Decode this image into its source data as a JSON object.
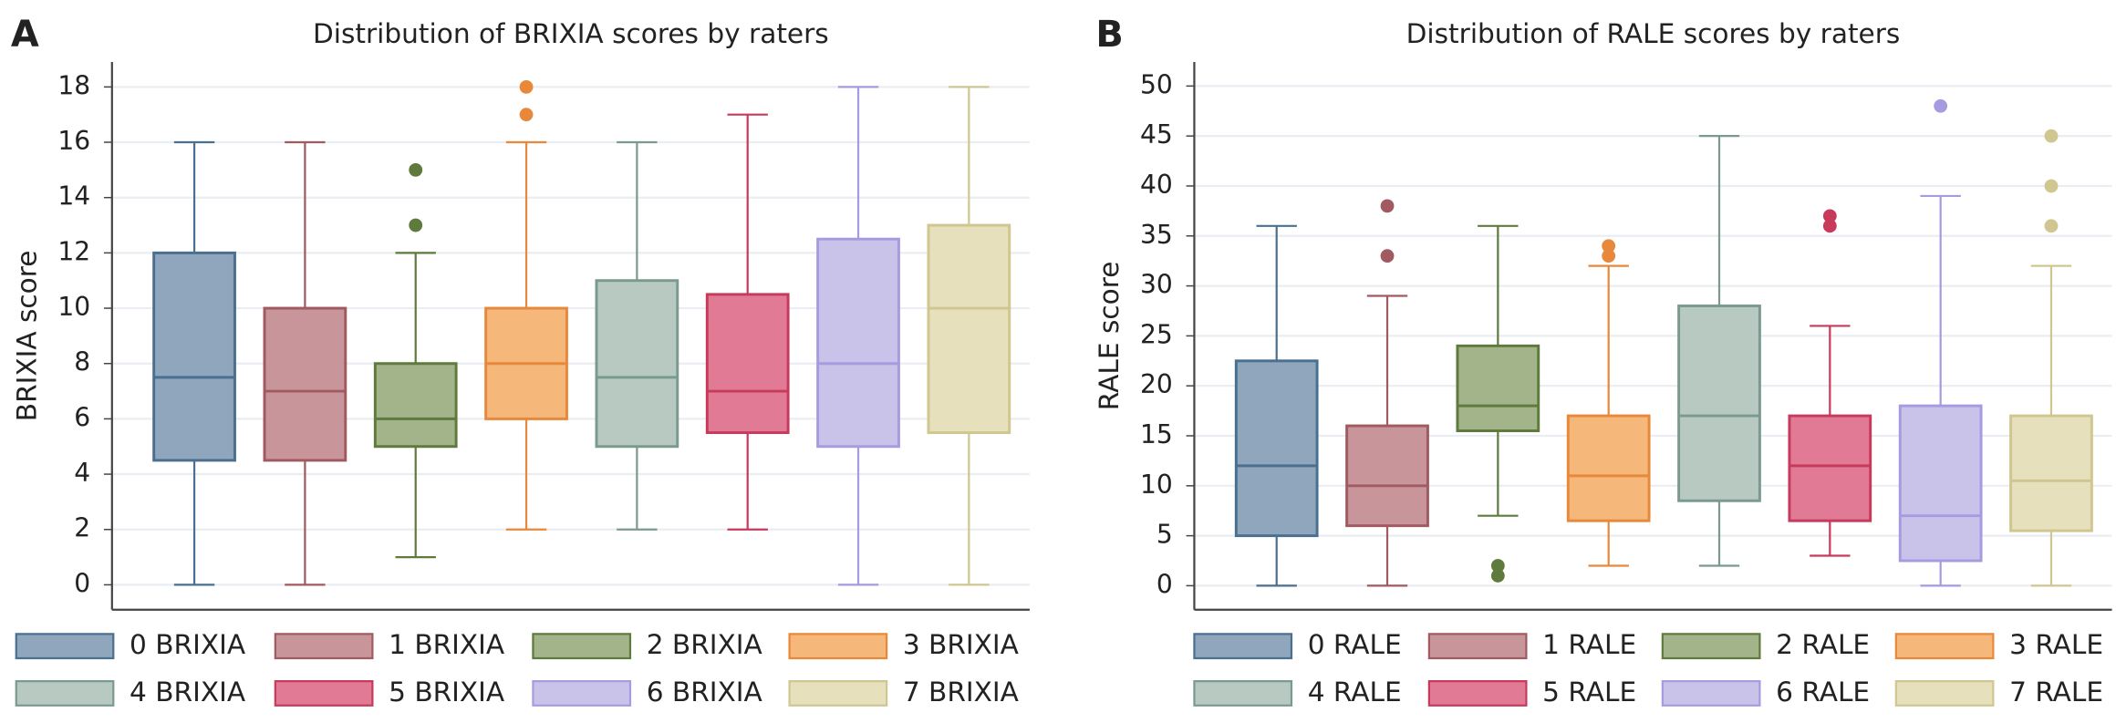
{
  "chart_data": [
    {
      "type": "box",
      "panel": "A",
      "title": "Distribution of BRIXIA scores by raters",
      "y_label": "BRIXIA score",
      "ylim": [
        -0.9,
        18.9
      ],
      "yticks": [
        0,
        2,
        4,
        6,
        8,
        10,
        12,
        14,
        16,
        18
      ],
      "grid": true,
      "series": [
        {
          "name": "0 BRIXIA",
          "color": "#8fa6bd",
          "edge": "#4a6f8f",
          "whisker_low": 0,
          "q1": 4.5,
          "median": 7.5,
          "q3": 12,
          "whisker_high": 16,
          "outliers": []
        },
        {
          "name": "1 BRIXIA",
          "color": "#c8969a",
          "edge": "#a05a60",
          "whisker_low": 0,
          "q1": 4.5,
          "median": 7,
          "q3": 10,
          "whisker_high": 16,
          "outliers": []
        },
        {
          "name": "2 BRIXIA",
          "color": "#a3b48b",
          "edge": "#5e7a3c",
          "whisker_low": 1,
          "q1": 5,
          "median": 6,
          "q3": 8,
          "whisker_high": 12,
          "outliers": [
            13,
            15
          ]
        },
        {
          "name": "3 BRIXIA",
          "color": "#f5b87a",
          "edge": "#e8883a",
          "whisker_low": 2,
          "q1": 6,
          "median": 8,
          "q3": 10,
          "whisker_high": 16,
          "outliers": [
            17,
            18
          ]
        },
        {
          "name": "4 BRIXIA",
          "color": "#b8c9c2",
          "edge": "#7a9a90",
          "whisker_low": 2,
          "q1": 5,
          "median": 7.5,
          "q3": 11,
          "whisker_high": 16,
          "outliers": []
        },
        {
          "name": "5 BRIXIA",
          "color": "#e07a95",
          "edge": "#c83a5c",
          "whisker_low": 2,
          "q1": 5.5,
          "median": 7,
          "q3": 10.5,
          "whisker_high": 17,
          "outliers": []
        },
        {
          "name": "6 BRIXIA",
          "color": "#c9c3ea",
          "edge": "#a89ae0",
          "whisker_low": 0,
          "q1": 5,
          "median": 8,
          "q3": 12.5,
          "whisker_high": 18,
          "outliers": []
        },
        {
          "name": "7 BRIXIA",
          "color": "#e6e0bc",
          "edge": "#d0c690",
          "whisker_low": 0,
          "q1": 5.5,
          "median": 10,
          "q3": 13,
          "whisker_high": 18,
          "outliers": []
        }
      ]
    },
    {
      "type": "box",
      "panel": "B",
      "title": "Distribution of RALE scores by raters",
      "y_label": "RALE score",
      "ylim": [
        -2.4,
        52.4
      ],
      "yticks": [
        0,
        5,
        10,
        15,
        20,
        25,
        30,
        35,
        40,
        45,
        50
      ],
      "grid": true,
      "series": [
        {
          "name": "0 RALE",
          "color": "#8fa6bd",
          "edge": "#4a6f8f",
          "whisker_low": 0,
          "q1": 5,
          "median": 12,
          "q3": 22.5,
          "whisker_high": 36,
          "outliers": []
        },
        {
          "name": "1 RALE",
          "color": "#c8969a",
          "edge": "#a05a60",
          "whisker_low": 0,
          "q1": 6,
          "median": 10,
          "q3": 16,
          "whisker_high": 29,
          "outliers": [
            33,
            38
          ]
        },
        {
          "name": "2 RALE",
          "color": "#a3b48b",
          "edge": "#5e7a3c",
          "whisker_low": 7,
          "q1": 15.5,
          "median": 18,
          "q3": 24,
          "whisker_high": 36,
          "outliers": [
            1,
            2
          ]
        },
        {
          "name": "3 RALE",
          "color": "#f5b87a",
          "edge": "#e8883a",
          "whisker_low": 2,
          "q1": 6.5,
          "median": 11,
          "q3": 17,
          "whisker_high": 32,
          "outliers": [
            33,
            34
          ]
        },
        {
          "name": "4 RALE",
          "color": "#b8c9c2",
          "edge": "#7a9a90",
          "whisker_low": 2,
          "q1": 8.5,
          "median": 17,
          "q3": 28,
          "whisker_high": 45,
          "outliers": []
        },
        {
          "name": "5 RALE",
          "color": "#e07a95",
          "edge": "#c83a5c",
          "whisker_low": 3,
          "q1": 6.5,
          "median": 12,
          "q3": 17,
          "whisker_high": 26,
          "outliers": [
            36,
            37
          ]
        },
        {
          "name": "6 RALE",
          "color": "#c9c3ea",
          "edge": "#a89ae0",
          "whisker_low": 0,
          "q1": 2.5,
          "median": 7,
          "q3": 18,
          "whisker_high": 39,
          "outliers": [
            48
          ]
        },
        {
          "name": "7 RALE",
          "color": "#e6e0bc",
          "edge": "#d0c690",
          "whisker_low": 0,
          "q1": 5.5,
          "median": 10.5,
          "q3": 17,
          "whisker_high": 32,
          "outliers": [
            36,
            40,
            45
          ]
        }
      ]
    }
  ]
}
